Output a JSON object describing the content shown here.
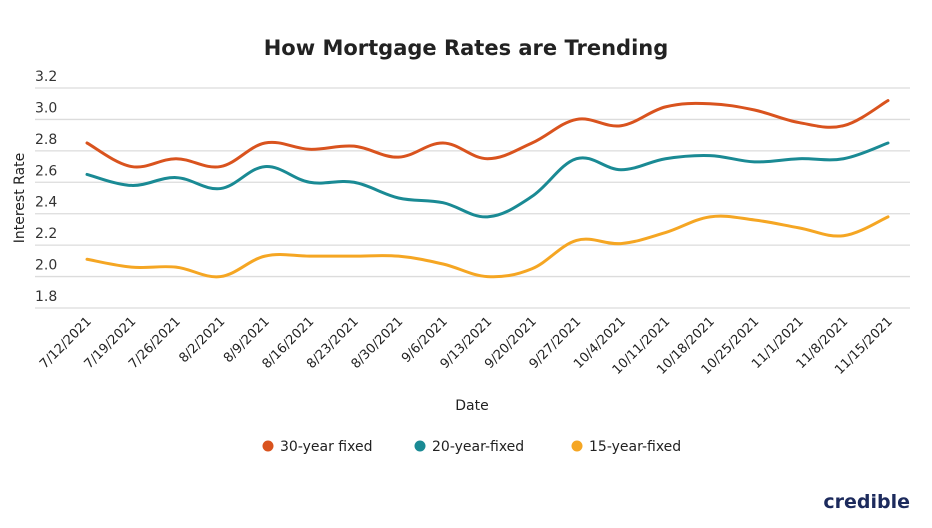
{
  "chart_data": {
    "type": "line",
    "title": "How Mortgage Rates are Trending",
    "xlabel": "Date",
    "ylabel": "Interest Rate",
    "ylim": [
      1.8,
      3.2
    ],
    "yticks": [
      "1.8",
      "2.0",
      "2.2",
      "2.4",
      "2.6",
      "2.8",
      "3.0",
      "3.2"
    ],
    "grid": true,
    "legend_position": "bottom",
    "categories": [
      "7/12/2021",
      "7/19/2021",
      "7/26/2021",
      "8/2/2021",
      "8/9/2021",
      "8/16/2021",
      "8/23/2021",
      "8/30/2021",
      "9/6/2021",
      "9/13/2021",
      "9/20/2021",
      "9/27/2021",
      "10/4/2021",
      "10/11/2021",
      "10/18/2021",
      "10/25/2021",
      "11/1/2021",
      "11/8/2021",
      "11/15/2021"
    ],
    "series": [
      {
        "name": "30-year fixed",
        "color": "#d9531e",
        "values": [
          2.85,
          2.7,
          2.75,
          2.7,
          2.85,
          2.81,
          2.83,
          2.76,
          2.85,
          2.75,
          2.85,
          3.0,
          2.96,
          3.08,
          3.1,
          3.06,
          2.98,
          2.96,
          3.12
        ]
      },
      {
        "name": "20-year-fixed",
        "color": "#1a8a94",
        "values": [
          2.65,
          2.58,
          2.63,
          2.56,
          2.7,
          2.6,
          2.6,
          2.5,
          2.47,
          2.38,
          2.51,
          2.75,
          2.68,
          2.75,
          2.77,
          2.73,
          2.75,
          2.75,
          2.85
        ]
      },
      {
        "name": "15-year-fixed",
        "color": "#f5a623",
        "values": [
          2.11,
          2.06,
          2.06,
          2.0,
          2.13,
          2.13,
          2.13,
          2.13,
          2.08,
          2.0,
          2.05,
          2.23,
          2.21,
          2.28,
          2.38,
          2.36,
          2.31,
          2.26,
          2.38
        ]
      }
    ]
  },
  "brand": {
    "logo_text": "credible",
    "color": "#1c2a5c"
  }
}
